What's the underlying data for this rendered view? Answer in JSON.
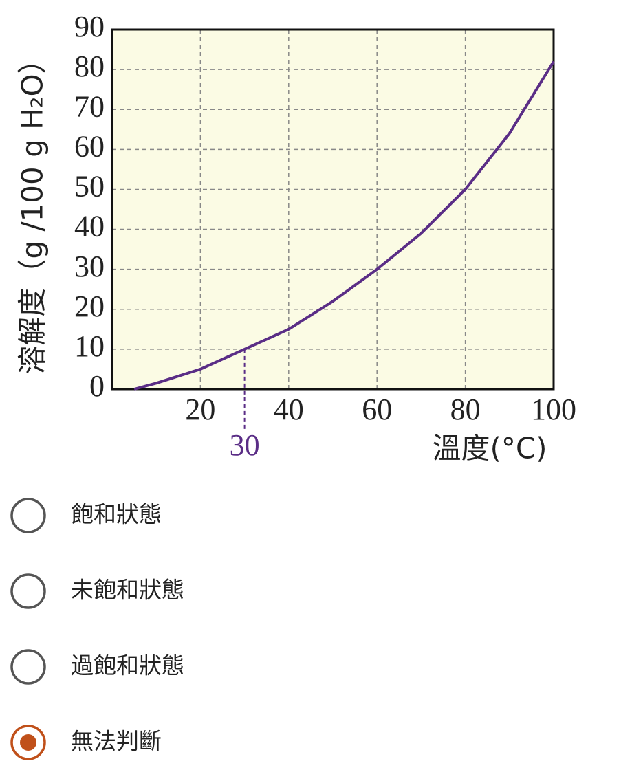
{
  "chart_data": {
    "type": "line",
    "xlabel": "溫度(°C)",
    "ylabel": "溶解度（g /100 g H₂O）",
    "x": [
      5,
      10,
      20,
      30,
      40,
      50,
      60,
      70,
      80,
      90,
      100
    ],
    "series": [
      {
        "color": "#5a2d86",
        "values": [
          0,
          1.5,
          5,
          10,
          15,
          22,
          30,
          39,
          50,
          64,
          82
        ]
      }
    ],
    "xlim": [
      0,
      100
    ],
    "xticks": [
      20,
      40,
      60,
      80,
      100
    ],
    "ylim": [
      0,
      90
    ],
    "yticks": [
      0,
      10,
      20,
      30,
      40,
      50,
      60,
      70,
      80,
      90
    ],
    "grid": true,
    "background": "#fbfbe4",
    "annotation": {
      "x": 30,
      "y": 10,
      "color": "#5a2d86"
    }
  },
  "options": {
    "items": [
      "飽和狀態",
      "未飽和狀態",
      "過飽和狀態",
      "無法判斷"
    ],
    "selected": 3
  }
}
